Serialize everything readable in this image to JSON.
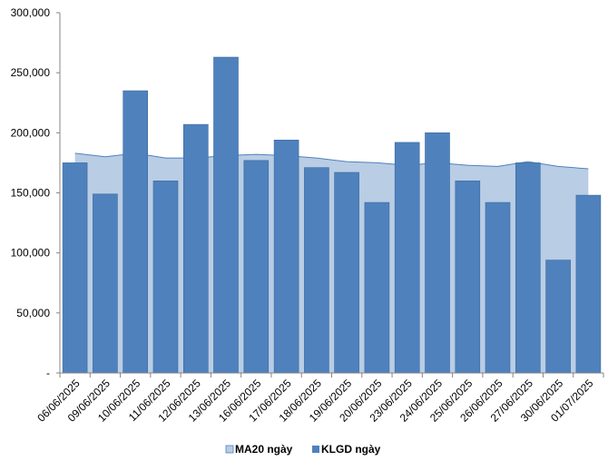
{
  "chart_data": {
    "type": "bar",
    "title": "",
    "xlabel": "",
    "ylabel": "",
    "ylim": [
      0,
      300000
    ],
    "y_ticks": [
      0,
      50000,
      100000,
      150000,
      200000,
      250000,
      300000
    ],
    "y_tick_labels": [
      "-",
      "50,000",
      "100,000",
      "150,000",
      "200,000",
      "250,000",
      "300,000"
    ],
    "grid": false,
    "legend_position": "bottom",
    "categories": [
      "06/06/2025",
      "09/06/2025",
      "10/06/2025",
      "11/06/2025",
      "12/06/2025",
      "13/06/2025",
      "16/06/2025",
      "17/06/2025",
      "18/06/2025",
      "19/06/2025",
      "20/06/2025",
      "23/06/2025",
      "24/06/2025",
      "25/06/2025",
      "26/06/2025",
      "27/06/2025",
      "30/06/2025",
      "01/07/2025"
    ],
    "series": [
      {
        "name": "MA20 ngày",
        "type": "area",
        "color": "#B9CDE5",
        "values": [
          183000,
          180000,
          183000,
          179000,
          179000,
          181000,
          182000,
          181000,
          179000,
          176000,
          175000,
          173000,
          175000,
          173000,
          172000,
          176000,
          172000,
          170000
        ]
      },
      {
        "name": "KLGD ngày",
        "type": "bar",
        "color": "#4F81BD",
        "values": [
          175000,
          149000,
          235000,
          160000,
          207000,
          263000,
          177000,
          194000,
          171000,
          167000,
          142000,
          192000,
          200000,
          160000,
          142000,
          175000,
          94000,
          148000
        ]
      }
    ]
  }
}
